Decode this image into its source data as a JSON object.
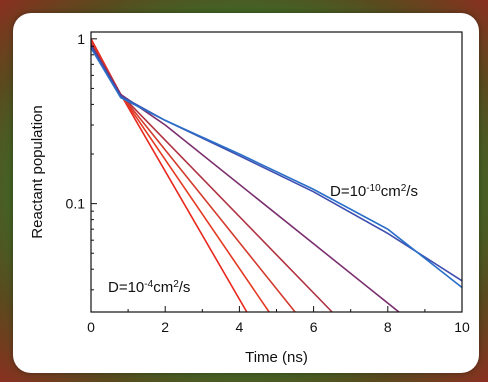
{
  "chart_data": {
    "type": "line",
    "xlabel": "Time (ns)",
    "ylabel": "Reactant population",
    "xlim": [
      0,
      10
    ],
    "ylim": [
      0.022,
      1.1
    ],
    "y_scale": "log",
    "x_ticks": [
      0,
      2,
      4,
      6,
      8,
      10
    ],
    "x_tick_labels": [
      "0",
      "2",
      "4",
      "6",
      "8",
      "10"
    ],
    "y_ticks": [
      1,
      0.1
    ],
    "y_tick_labels": [
      "1",
      "0.1"
    ],
    "grid": false,
    "annotations": [
      {
        "text": "D=10",
        "sup": "-10",
        "text2": "cm",
        "sup2": "2",
        "text3": "/s",
        "color": "#2e4fa8"
      },
      {
        "text": "D=10",
        "sup": "-4",
        "text2": "cm",
        "sup2": "2",
        "text3": "/s",
        "color": "#e8261c"
      }
    ],
    "series": [
      {
        "color": "#e8261c",
        "points": [
          [
            0,
            1.0
          ],
          [
            0.8,
            0.46
          ],
          [
            4.2,
            0.022
          ]
        ]
      },
      {
        "color": "#e53a22",
        "points": [
          [
            0,
            0.97
          ],
          [
            0.8,
            0.46
          ],
          [
            4.8,
            0.022
          ]
        ]
      },
      {
        "color": "#d43a2c",
        "points": [
          [
            0,
            0.95
          ],
          [
            0.8,
            0.46
          ],
          [
            5.5,
            0.022
          ]
        ]
      },
      {
        "color": "#b03242",
        "points": [
          [
            0,
            0.93
          ],
          [
            0.8,
            0.46
          ],
          [
            6.5,
            0.022
          ]
        ]
      },
      {
        "color": "#7c2f6e",
        "points": [
          [
            0,
            0.92
          ],
          [
            0.8,
            0.46
          ],
          [
            2.0,
            0.3
          ],
          [
            8.3,
            0.022
          ]
        ]
      },
      {
        "color": "#3f4fb0",
        "points": [
          [
            0,
            0.9
          ],
          [
            0.8,
            0.45
          ],
          [
            2.0,
            0.32
          ],
          [
            4.0,
            0.195
          ],
          [
            6.0,
            0.118
          ],
          [
            8.0,
            0.066
          ],
          [
            10.0,
            0.034
          ]
        ]
      },
      {
        "color": "#2a6fc9",
        "points": [
          [
            0,
            0.88
          ],
          [
            0.8,
            0.44
          ],
          [
            2.0,
            0.32
          ],
          [
            4.0,
            0.2
          ],
          [
            6.0,
            0.122
          ],
          [
            8.0,
            0.07
          ],
          [
            10.0,
            0.031
          ]
        ]
      }
    ]
  }
}
